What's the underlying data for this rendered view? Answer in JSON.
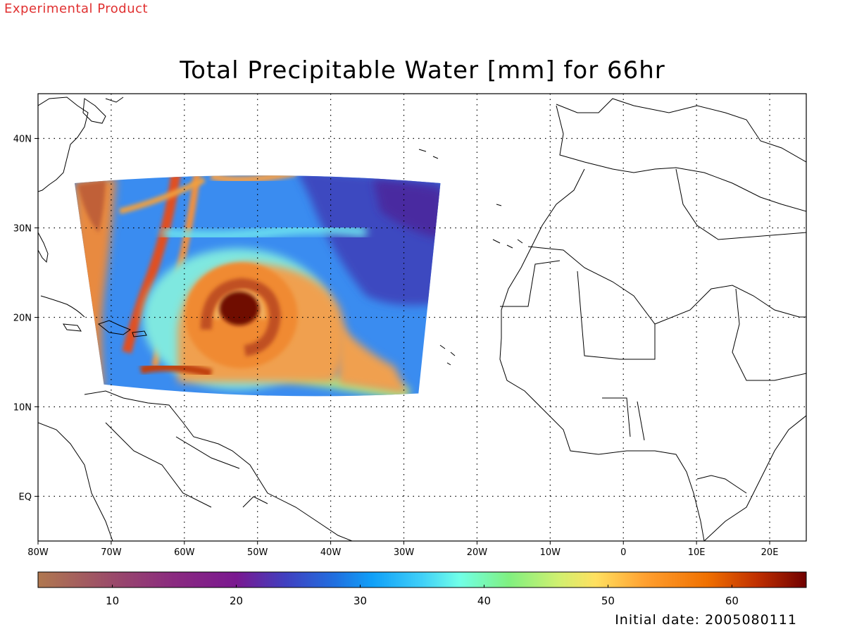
{
  "header": {
    "experimental": "Experimental Product",
    "title": "Total Precipitable Water [mm] for 66hr"
  },
  "footer": {
    "initial_date": "Initial date: 2005080111"
  },
  "map": {
    "lon_range": [
      -80,
      25
    ],
    "lat_range": [
      -5,
      45
    ],
    "grid": "dotted",
    "lon_ticks": [
      {
        "value": -80,
        "label": "80W"
      },
      {
        "value": -70,
        "label": "70W"
      },
      {
        "value": -60,
        "label": "60W"
      },
      {
        "value": -50,
        "label": "50W"
      },
      {
        "value": -40,
        "label": "40W"
      },
      {
        "value": -30,
        "label": "30W"
      },
      {
        "value": -20,
        "label": "20W"
      },
      {
        "value": -10,
        "label": "10W"
      },
      {
        "value": 0,
        "label": "0"
      },
      {
        "value": 10,
        "label": "10E"
      },
      {
        "value": 20,
        "label": "20E"
      }
    ],
    "lat_ticks": [
      {
        "value": 40,
        "label": "40N"
      },
      {
        "value": 30,
        "label": "30N"
      },
      {
        "value": 20,
        "label": "20N"
      },
      {
        "value": 10,
        "label": "10N"
      },
      {
        "value": 0,
        "label": "EQ"
      }
    ],
    "field_domain": {
      "corners_lonlat": [
        [
          -75,
          35
        ],
        [
          -25,
          35
        ],
        [
          -28,
          11.5
        ],
        [
          -71,
          12.5
        ]
      ]
    },
    "features": {
      "vortex_center": {
        "lon": -52.5,
        "lat": 21
      }
    }
  },
  "colorbar": {
    "range": [
      4,
      66
    ],
    "ticks": [
      {
        "value": 10,
        "label": "10"
      },
      {
        "value": 20,
        "label": "20"
      },
      {
        "value": 30,
        "label": "30"
      },
      {
        "value": 40,
        "label": "40"
      },
      {
        "value": 50,
        "label": "50"
      },
      {
        "value": 60,
        "label": "60"
      }
    ],
    "stops": [
      {
        "value": 4,
        "color": "#b07850"
      },
      {
        "value": 10,
        "color": "#9a4a6a"
      },
      {
        "value": 15,
        "color": "#8a2a80"
      },
      {
        "value": 20,
        "color": "#7a1890"
      },
      {
        "value": 24,
        "color": "#4040c0"
      },
      {
        "value": 28,
        "color": "#2070e0"
      },
      {
        "value": 31,
        "color": "#10a0f8"
      },
      {
        "value": 35,
        "color": "#40d0f8"
      },
      {
        "value": 38,
        "color": "#70ffe8"
      },
      {
        "value": 42,
        "color": "#80f080"
      },
      {
        "value": 46,
        "color": "#d0f070"
      },
      {
        "value": 49,
        "color": "#ffe060"
      },
      {
        "value": 53,
        "color": "#ffa030"
      },
      {
        "value": 58,
        "color": "#f07000"
      },
      {
        "value": 62,
        "color": "#c03000"
      },
      {
        "value": 66,
        "color": "#700000"
      }
    ]
  }
}
